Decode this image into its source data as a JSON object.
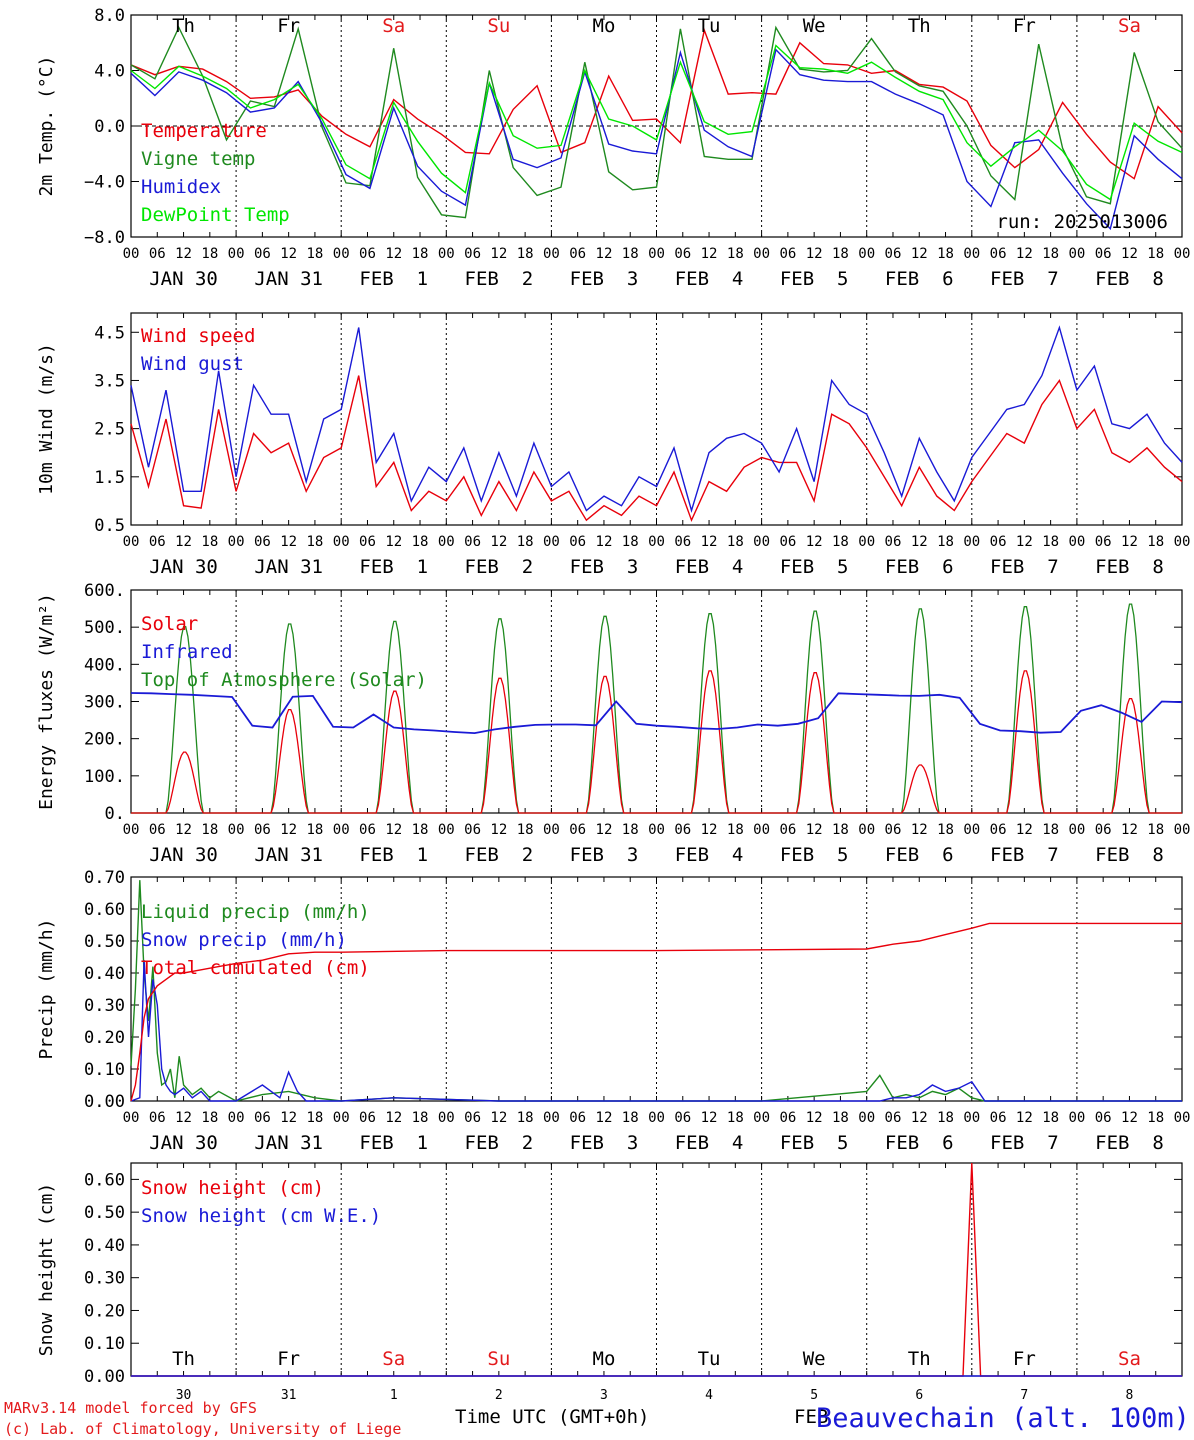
{
  "chart_data": [
    {
      "type": "line",
      "ylabel": "2m Temp. (°C)",
      "ylim": [
        -8,
        8
      ],
      "yticks": [
        "8.0",
        "4.0",
        "0.0",
        "−4.0",
        "−8.0"
      ],
      "ytick_values": [
        8,
        4,
        0,
        -4,
        -8
      ],
      "zero_line": true,
      "run_label": "run: 2025013006",
      "day_labels_top": [
        {
          "label": "Th",
          "color": "#000000"
        },
        {
          "label": "Fr",
          "color": "#000000"
        },
        {
          "label": "Sa",
          "color": "#e31a1c"
        },
        {
          "label": "Su",
          "color": "#e31a1c"
        },
        {
          "label": "Mo",
          "color": "#000000"
        },
        {
          "label": "Tu",
          "color": "#000000"
        },
        {
          "label": "We",
          "color": "#000000"
        },
        {
          "label": "Th",
          "color": "#000000"
        },
        {
          "label": "Fr",
          "color": "#000000"
        },
        {
          "label": "Sa",
          "color": "#e31a1c"
        }
      ],
      "series": [
        {
          "name": "Temperature",
          "color": "#e8000b",
          "values": [
            4.4,
            3.7,
            4.3,
            4.1,
            3.2,
            2.0,
            2.1,
            2.6,
            0.7,
            -0.6,
            -1.5,
            1.9,
            0.5,
            -0.6,
            -1.9,
            -2.0,
            1.2,
            2.9,
            -1.9,
            -1.2,
            3.6,
            0.4,
            0.5,
            -1.2,
            6.9,
            2.3,
            2.4,
            2.3,
            6.0,
            4.5,
            4.4,
            3.8,
            4.0,
            3.0,
            2.8,
            1.8,
            -1.4,
            -3.0,
            -1.7,
            1.7,
            -0.6,
            -2.6,
            -3.8,
            1.4,
            -0.5
          ]
        },
        {
          "name": "Vigne temp",
          "color": "#1f8a1f",
          "values": [
            4.4,
            3.4,
            7.1,
            3.6,
            -1.0,
            1.8,
            1.4,
            7.0,
            -0.1,
            -4.1,
            -4.3,
            5.6,
            -3.7,
            -6.4,
            -6.6,
            4.0,
            -3.0,
            -5.0,
            -4.4,
            4.6,
            -3.3,
            -4.6,
            -4.4,
            7.0,
            -2.2,
            -2.4,
            -2.4,
            7.1,
            4.1,
            3.9,
            4.0,
            6.3,
            3.9,
            2.9,
            2.5,
            0.0,
            -3.6,
            -5.3,
            5.9,
            -1.6,
            -5.1,
            -5.6,
            5.3,
            0.3,
            -1.6
          ]
        },
        {
          "name": "Humidex",
          "color": "#1a1ad6",
          "values": [
            3.8,
            2.2,
            3.9,
            3.3,
            2.4,
            1.0,
            1.3,
            3.2,
            0.2,
            -3.5,
            -4.5,
            1.3,
            -2.9,
            -4.7,
            -5.7,
            3.1,
            -2.4,
            -3.0,
            -2.3,
            3.9,
            -1.3,
            -1.8,
            -2.0,
            5.3,
            -0.3,
            -1.5,
            -2.2,
            5.5,
            3.7,
            3.3,
            3.2,
            3.2,
            2.3,
            1.6,
            0.8,
            -4.0,
            -5.8,
            -1.2,
            -1.0,
            -3.4,
            -5.6,
            -7.4,
            -0.7,
            -2.4,
            -3.8
          ]
        },
        {
          "name": "DewPoint Temp",
          "color": "#00e600",
          "values": [
            4.0,
            2.7,
            4.3,
            3.6,
            2.7,
            1.3,
            1.9,
            3.0,
            0.5,
            -2.8,
            -3.8,
            1.7,
            -1.1,
            -3.4,
            -4.8,
            3.1,
            -0.7,
            -1.6,
            -1.4,
            4.0,
            0.5,
            0.0,
            -1.0,
            4.6,
            0.3,
            -0.6,
            -0.4,
            5.8,
            4.2,
            4.1,
            3.8,
            4.6,
            3.5,
            2.5,
            1.9,
            -1.2,
            -2.9,
            -1.5,
            -0.3,
            -1.8,
            -4.2,
            -5.3,
            0.2,
            -1.1,
            -1.9
          ]
        }
      ]
    },
    {
      "type": "line",
      "ylabel": "10m Wind (m/s)",
      "ylim": [
        0.5,
        4.9
      ],
      "yticks": [
        "4.5",
        "3.5",
        "2.5",
        "1.5",
        "0.5"
      ],
      "ytick_values": [
        4.5,
        3.5,
        2.5,
        1.5,
        0.5
      ],
      "series": [
        {
          "name": "Wind speed",
          "color": "#e8000b",
          "values": [
            2.6,
            1.3,
            2.7,
            0.9,
            0.85,
            2.9,
            1.2,
            2.4,
            2.0,
            2.2,
            1.2,
            1.9,
            2.1,
            3.6,
            1.3,
            1.8,
            0.8,
            1.2,
            1.0,
            1.5,
            0.7,
            1.4,
            0.8,
            1.6,
            1.0,
            1.2,
            0.6,
            0.9,
            0.7,
            1.1,
            0.9,
            1.6,
            0.6,
            1.4,
            1.2,
            1.7,
            1.9,
            1.8,
            1.8,
            1.0,
            2.8,
            2.6,
            2.1,
            1.5,
            0.9,
            1.7,
            1.1,
            0.8,
            1.4,
            1.9,
            2.4,
            2.2,
            3.0,
            3.5,
            2.5,
            2.9,
            2.0,
            1.8,
            2.1,
            1.7,
            1.4
          ]
        },
        {
          "name": "Wind gust",
          "color": "#1a1ad6",
          "values": [
            3.4,
            1.7,
            3.3,
            1.2,
            1.2,
            3.7,
            1.5,
            3.4,
            2.8,
            2.8,
            1.4,
            2.7,
            2.9,
            4.6,
            1.8,
            2.4,
            1.0,
            1.7,
            1.4,
            2.1,
            1.0,
            2.0,
            1.1,
            2.2,
            1.3,
            1.6,
            0.8,
            1.1,
            0.9,
            1.5,
            1.3,
            2.1,
            0.8,
            2.0,
            2.3,
            2.4,
            2.2,
            1.6,
            2.5,
            1.4,
            3.5,
            3.0,
            2.8,
            2.0,
            1.1,
            2.3,
            1.6,
            1.0,
            1.9,
            2.4,
            2.9,
            3.0,
            3.6,
            4.6,
            3.3,
            3.8,
            2.6,
            2.5,
            2.8,
            2.2,
            1.8
          ]
        }
      ]
    },
    {
      "type": "line",
      "ylabel": "Energy fluxes (W/m²)",
      "ylim": [
        0,
        600
      ],
      "yticks": [
        "600.",
        "500.",
        "400.",
        "300.",
        "200.",
        "100.",
        "0."
      ],
      "ytick_values": [
        600,
        500,
        400,
        300,
        200,
        100,
        0
      ],
      "daylight_hours": [
        8,
        16.5
      ],
      "daily_peaks": {
        "Top of Atmosphere (Solar)": [
          505,
          512,
          519,
          526,
          533,
          540,
          547,
          553,
          559,
          566
        ],
        "Solar": [
          165,
          280,
          330,
          365,
          370,
          385,
          380,
          130,
          385,
          310
        ]
      },
      "infrared_values": [
        323,
        322,
        320,
        318,
        315,
        312,
        235,
        230,
        313,
        315,
        232,
        230,
        265,
        230,
        225,
        222,
        218,
        215,
        225,
        232,
        237,
        238,
        238,
        236,
        300,
        240,
        235,
        232,
        228,
        226,
        230,
        238,
        235,
        240,
        255,
        322,
        320,
        318,
        316,
        315,
        318,
        310,
        240,
        222,
        220,
        216,
        218,
        275,
        290,
        270,
        245,
        300,
        298
      ],
      "series": [
        {
          "name": "Solar",
          "color": "#e8000b"
        },
        {
          "name": "Infrared",
          "color": "#1a1ad6"
        },
        {
          "name": "Top of Atmosphere (Solar)",
          "color": "#1f8a1f"
        }
      ]
    },
    {
      "type": "line",
      "ylabel": "Precip (mm/h)",
      "ylim": [
        0,
        0.7
      ],
      "yticks": [
        "0.70",
        "0.60",
        "0.50",
        "0.40",
        "0.30",
        "0.20",
        "0.10",
        "0.00"
      ],
      "ytick_values": [
        0.7,
        0.6,
        0.5,
        0.4,
        0.3,
        0.2,
        0.1,
        0
      ],
      "series": [
        {
          "name": "Liquid precip (mm/h)",
          "color": "#1f8a1f",
          "x_hours": [
            0,
            1,
            2,
            3,
            4,
            5,
            6,
            7,
            8,
            9,
            10,
            11,
            12,
            14,
            16,
            18,
            20,
            24,
            30,
            36,
            42,
            48,
            60,
            84,
            96,
            144,
            168,
            171,
            174,
            177,
            180,
            183,
            186,
            189,
            192,
            195,
            200,
            216,
            240
          ],
          "values": [
            0.11,
            0.35,
            0.69,
            0.4,
            0.25,
            0.42,
            0.15,
            0.05,
            0.06,
            0.1,
            0.01,
            0.14,
            0.05,
            0.02,
            0.04,
            0.01,
            0.03,
            0.0,
            0.02,
            0.03,
            0.01,
            0.0,
            0.01,
            0.0,
            0.0,
            0.0,
            0.03,
            0.08,
            0.01,
            0.02,
            0.01,
            0.03,
            0.02,
            0.04,
            0.01,
            0.0,
            0.0,
            0.0,
            0.0
          ]
        },
        {
          "name": "Snow precip (mm/h)",
          "color": "#1a1ad6",
          "x_hours": [
            0,
            2,
            3,
            4,
            5,
            6,
            7,
            8,
            9,
            10,
            12,
            14,
            16,
            18,
            24,
            30,
            34,
            36,
            38,
            40,
            48,
            60,
            84,
            96,
            144,
            168,
            171,
            174,
            177,
            180,
            183,
            186,
            189,
            192,
            195,
            200,
            216,
            240
          ],
          "values": [
            0.0,
            0.01,
            0.44,
            0.2,
            0.38,
            0.3,
            0.1,
            0.05,
            0.03,
            0.02,
            0.04,
            0.01,
            0.03,
            0.0,
            0.0,
            0.05,
            0.01,
            0.09,
            0.03,
            0.0,
            0.0,
            0.01,
            0.0,
            0.0,
            0.0,
            0.0,
            0.0,
            0.01,
            0.01,
            0.02,
            0.05,
            0.03,
            0.04,
            0.06,
            0.0,
            0.0,
            0.0,
            0.0
          ]
        },
        {
          "name": "Total cumulated (cm)",
          "color": "#e8000b",
          "x_hours": [
            0,
            1,
            2,
            3,
            4,
            5,
            6,
            8,
            10,
            12,
            16,
            20,
            24,
            30,
            36,
            42,
            48,
            72,
            120,
            168,
            174,
            180,
            186,
            192,
            196,
            200,
            240
          ],
          "values": [
            0.0,
            0.05,
            0.15,
            0.26,
            0.32,
            0.34,
            0.36,
            0.38,
            0.4,
            0.4,
            0.41,
            0.42,
            0.43,
            0.44,
            0.46,
            0.465,
            0.465,
            0.47,
            0.47,
            0.475,
            0.49,
            0.5,
            0.52,
            0.54,
            0.555,
            0.555,
            0.555
          ]
        }
      ]
    },
    {
      "type": "line",
      "ylabel": "Snow height (cm)",
      "ylim": [
        0,
        0.65
      ],
      "yticks": [
        "0.60",
        "0.50",
        "0.40",
        "0.30",
        "0.20",
        "0.10",
        "0.00"
      ],
      "ytick_values": [
        0.6,
        0.5,
        0.4,
        0.3,
        0.2,
        0.1,
        0
      ],
      "series": [
        {
          "name": "Snow height (cm)",
          "color": "#e8000b",
          "x_hours": [
            0,
            190,
            192,
            194,
            240
          ],
          "values": [
            0,
            0,
            0.65,
            0,
            0
          ]
        },
        {
          "name": "Snow height (cm W.E.)",
          "color": "#1a1ad6",
          "x_hours": [
            0,
            240
          ],
          "values": [
            0,
            0
          ]
        }
      ]
    }
  ],
  "x_axis": {
    "range_hours": [
      0,
      240
    ],
    "hour_ticks": [
      "00",
      "06",
      "12",
      "18"
    ],
    "date_labels": [
      "JAN 30",
      "JAN 31",
      "FEB  1",
      "FEB  2",
      "FEB  3",
      "FEB  4",
      "FEB  5",
      "FEB  6",
      "FEB  7",
      "FEB  8"
    ],
    "bottom_day_numbers": [
      "30",
      "31",
      "1",
      "2",
      "3",
      "4",
      "5",
      "6",
      "7",
      "8"
    ],
    "xlabel": "Time UTC (GMT+0h)",
    "feb_label": "FEB"
  },
  "footer": {
    "credit_line1": "MARv3.14 model forced by GFS",
    "credit_line2": "(c) Lab. of Climatology, University of Liege",
    "station": "Beauvechain (alt. 100m)"
  },
  "colors": {
    "red": "#e31a1c",
    "axis": "#000000"
  }
}
